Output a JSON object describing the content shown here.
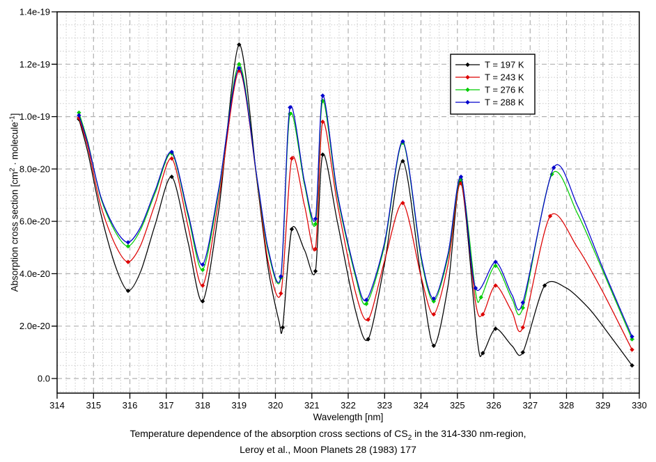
{
  "chart_data": {
    "type": "line",
    "xlabel": "Wavelength [nm]",
    "ylabel": {
      "pre": "Absorption cross section [cm",
      "sup1": "2",
      "mid": " · molecule",
      "sup2": "-1",
      "post": "]"
    },
    "caption": {
      "line1_pre": "Temperature dependence of the absorption cross sections of CS",
      "line1_sub": "2",
      "line1_post": " in the 314-330 nm-region,",
      "line2": "Leroy et al., Moon Planets 28 (1983) 177"
    },
    "xlim": [
      314,
      330
    ],
    "ylim_e20": [
      -0.56,
      14
    ],
    "values_unit": "1e-20 cm^2 molecule^-1",
    "x_ticks": [
      314,
      315,
      316,
      317,
      318,
      319,
      320,
      321,
      322,
      323,
      324,
      325,
      326,
      327,
      328,
      329,
      330
    ],
    "y_ticks": [
      {
        "v": 0,
        "label": "0.0"
      },
      {
        "v": 2,
        "label": "2.0e-20"
      },
      {
        "v": 4,
        "label": "4.0e-20"
      },
      {
        "v": 6,
        "label": "6.0e-20"
      },
      {
        "v": 8,
        "label": "8.0e-20"
      },
      {
        "v": 10,
        "label": "1.0e-19"
      },
      {
        "v": 12,
        "label": "1.2e-19"
      },
      {
        "v": 14,
        "label": "1.4e-19"
      }
    ],
    "grid": {
      "major": "dashed",
      "minor": "dotted",
      "x_minor_step": 0.25,
      "y_minor_step_e20": 0.5
    },
    "legend_position": "upper-right",
    "series": [
      {
        "name": "T = 197 K",
        "color": "#000000",
        "points": [
          [
            314.6,
            9.9
          ],
          [
            314.85,
            8.6
          ],
          [
            315.2,
            6.3
          ],
          [
            315.6,
            4.3
          ],
          [
            315.95,
            3.35
          ],
          [
            316.3,
            4.1
          ],
          [
            316.7,
            5.9
          ],
          [
            317.15,
            7.7
          ],
          [
            317.6,
            5.2
          ],
          [
            318.0,
            2.95
          ],
          [
            318.45,
            6.5
          ],
          [
            319.0,
            12.75
          ],
          [
            319.5,
            7.45
          ],
          [
            319.8,
            4.2
          ],
          [
            320.1,
            2.18
          ],
          [
            320.2,
            1.95
          ],
          [
            320.45,
            5.7
          ],
          [
            320.8,
            4.9
          ],
          [
            321.1,
            4.1
          ],
          [
            321.3,
            8.55
          ],
          [
            321.7,
            6.0
          ],
          [
            322.2,
            2.6
          ],
          [
            322.55,
            1.5
          ],
          [
            323.0,
            4.4
          ],
          [
            323.5,
            8.3
          ],
          [
            324.0,
            3.9
          ],
          [
            324.35,
            1.25
          ],
          [
            324.75,
            3.6
          ],
          [
            325.1,
            7.5
          ],
          [
            325.55,
            1.45
          ],
          [
            325.7,
            0.97
          ],
          [
            326.05,
            1.9
          ],
          [
            326.5,
            1.25
          ],
          [
            326.8,
            1.0
          ],
          [
            327.4,
            3.55
          ],
          [
            328.0,
            3.45
          ],
          [
            328.6,
            2.7
          ],
          [
            329.0,
            2.0
          ],
          [
            329.8,
            0.5
          ]
        ]
      },
      {
        "name": "T = 243 K",
        "color": "#dd0000",
        "points": [
          [
            314.6,
            9.95
          ],
          [
            314.85,
            8.8
          ],
          [
            315.2,
            6.6
          ],
          [
            315.6,
            5.1
          ],
          [
            315.95,
            4.45
          ],
          [
            316.3,
            5.1
          ],
          [
            316.7,
            6.7
          ],
          [
            317.15,
            8.4
          ],
          [
            317.6,
            5.8
          ],
          [
            318.0,
            3.55
          ],
          [
            318.45,
            6.9
          ],
          [
            319.0,
            11.75
          ],
          [
            319.5,
            7.5
          ],
          [
            319.8,
            4.45
          ],
          [
            320.15,
            3.25
          ],
          [
            320.45,
            8.4
          ],
          [
            320.8,
            6.6
          ],
          [
            321.1,
            4.95
          ],
          [
            321.3,
            9.8
          ],
          [
            321.7,
            6.7
          ],
          [
            322.2,
            3.3
          ],
          [
            322.55,
            2.25
          ],
          [
            323.0,
            4.5
          ],
          [
            323.5,
            6.7
          ],
          [
            324.0,
            3.9
          ],
          [
            324.35,
            2.45
          ],
          [
            324.75,
            4.4
          ],
          [
            325.1,
            7.45
          ],
          [
            325.5,
            2.9
          ],
          [
            325.7,
            2.45
          ],
          [
            326.05,
            3.55
          ],
          [
            326.5,
            2.55
          ],
          [
            326.8,
            1.95
          ],
          [
            327.55,
            6.2
          ],
          [
            328.3,
            5.0
          ],
          [
            329.0,
            3.3
          ],
          [
            329.8,
            1.1
          ]
        ]
      },
      {
        "name": "T = 276 K",
        "color": "#00cc00",
        "points": [
          [
            314.6,
            10.15
          ],
          [
            314.85,
            9.0
          ],
          [
            315.2,
            6.9
          ],
          [
            315.6,
            5.6
          ],
          [
            315.95,
            5.05
          ],
          [
            316.3,
            5.7
          ],
          [
            316.7,
            7.1
          ],
          [
            317.15,
            8.6
          ],
          [
            317.6,
            6.2
          ],
          [
            318.0,
            4.15
          ],
          [
            318.45,
            7.2
          ],
          [
            319.0,
            12.0
          ],
          [
            319.5,
            7.55
          ],
          [
            319.8,
            4.85
          ],
          [
            320.15,
            3.85
          ],
          [
            320.4,
            10.1
          ],
          [
            320.8,
            7.4
          ],
          [
            321.1,
            5.9
          ],
          [
            321.3,
            10.6
          ],
          [
            321.7,
            7.0
          ],
          [
            322.2,
            3.9
          ],
          [
            322.5,
            2.85
          ],
          [
            323.0,
            5.1
          ],
          [
            323.5,
            9.0
          ],
          [
            324.0,
            4.6
          ],
          [
            324.35,
            2.95
          ],
          [
            324.75,
            4.7
          ],
          [
            325.1,
            7.6
          ],
          [
            325.5,
            3.3
          ],
          [
            325.65,
            3.1
          ],
          [
            326.05,
            4.3
          ],
          [
            326.5,
            3.05
          ],
          [
            326.8,
            2.7
          ],
          [
            327.6,
            7.8
          ],
          [
            328.3,
            6.3
          ],
          [
            329.0,
            4.1
          ],
          [
            329.8,
            1.5
          ]
        ]
      },
      {
        "name": "T = 288 K",
        "color": "#0000cc",
        "points": [
          [
            314.6,
            10.05
          ],
          [
            314.85,
            8.95
          ],
          [
            315.2,
            6.95
          ],
          [
            315.6,
            5.7
          ],
          [
            315.95,
            5.2
          ],
          [
            316.3,
            5.8
          ],
          [
            316.7,
            7.2
          ],
          [
            317.15,
            8.65
          ],
          [
            317.6,
            6.3
          ],
          [
            318.0,
            4.35
          ],
          [
            318.45,
            7.3
          ],
          [
            319.0,
            11.85
          ],
          [
            319.5,
            7.6
          ],
          [
            319.8,
            4.95
          ],
          [
            320.15,
            3.9
          ],
          [
            320.4,
            10.35
          ],
          [
            320.8,
            7.5
          ],
          [
            321.1,
            6.1
          ],
          [
            321.3,
            10.8
          ],
          [
            321.7,
            7.1
          ],
          [
            322.2,
            4.0
          ],
          [
            322.5,
            3.0
          ],
          [
            323.0,
            5.2
          ],
          [
            323.5,
            9.05
          ],
          [
            324.0,
            4.7
          ],
          [
            324.35,
            3.05
          ],
          [
            324.75,
            4.8
          ],
          [
            325.1,
            7.7
          ],
          [
            325.5,
            3.45
          ],
          [
            326.05,
            4.45
          ],
          [
            326.5,
            3.2
          ],
          [
            326.8,
            2.9
          ],
          [
            327.65,
            8.05
          ],
          [
            328.3,
            6.6
          ],
          [
            329.0,
            4.2
          ],
          [
            329.8,
            1.6
          ]
        ]
      }
    ]
  }
}
